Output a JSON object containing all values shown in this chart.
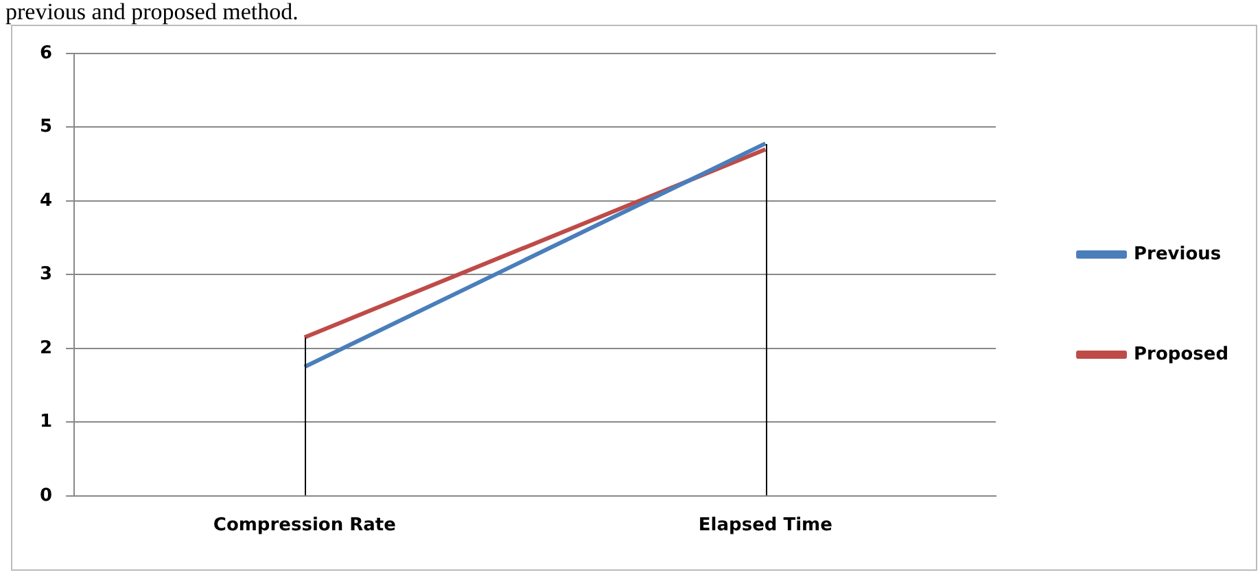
{
  "chart_data": {
    "type": "line",
    "annotations": [
      "previous and proposed method."
    ],
    "categories": [
      "Compression Rate",
      "Elapsed Time"
    ],
    "series": [
      {
        "name": "Previous",
        "color": "#4a7ebb",
        "values": [
          1.75,
          4.78
        ]
      },
      {
        "name": "Proposed",
        "color": "#be4b48",
        "values": [
          2.15,
          4.7
        ]
      }
    ],
    "ylim": [
      0,
      6
    ],
    "yticks": [
      0,
      1,
      2,
      3,
      4,
      5,
      6
    ],
    "grid": "y",
    "legend": "right",
    "marker": "none"
  }
}
